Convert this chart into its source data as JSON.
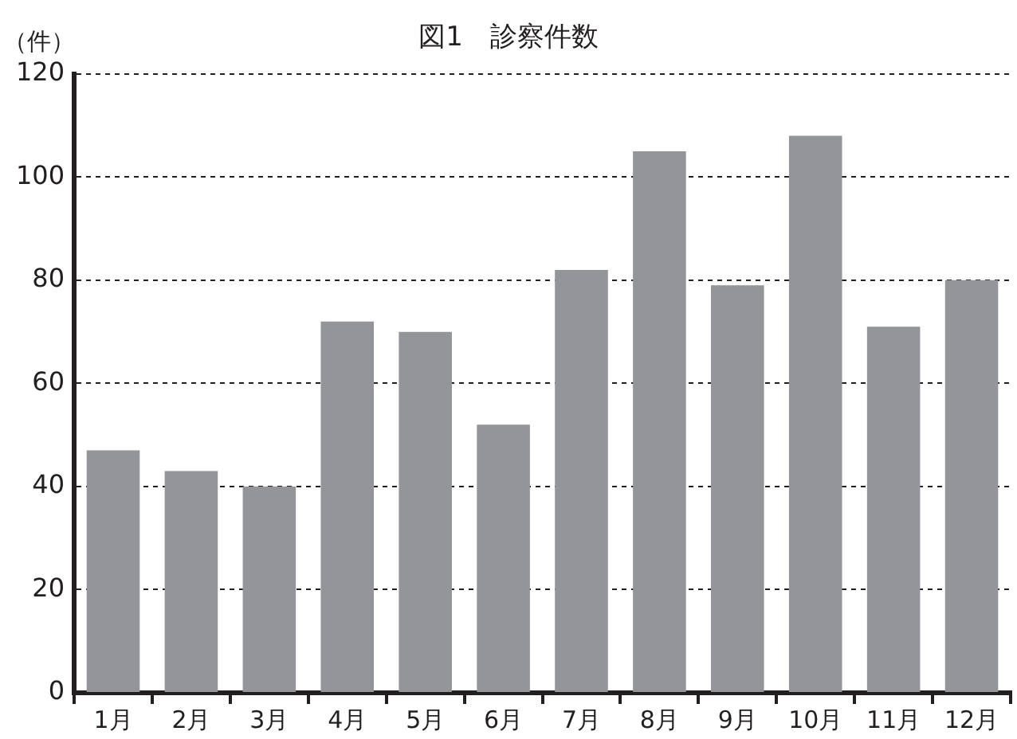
{
  "chart_data": {
    "type": "bar",
    "title": "図1　診察件数",
    "ylabel": "（件）",
    "categories": [
      "1月",
      "2月",
      "3月",
      "4月",
      "5月",
      "6月",
      "7月",
      "8月",
      "9月",
      "10月",
      "11月",
      "12月"
    ],
    "values": [
      47,
      43,
      40,
      72,
      70,
      52,
      82,
      105,
      79,
      108,
      71,
      80
    ],
    "color": "#939598",
    "ylim": [
      0,
      120
    ],
    "yticks": [
      0,
      20,
      40,
      60,
      80,
      100,
      120
    ],
    "grid": "y",
    "legend": false
  }
}
